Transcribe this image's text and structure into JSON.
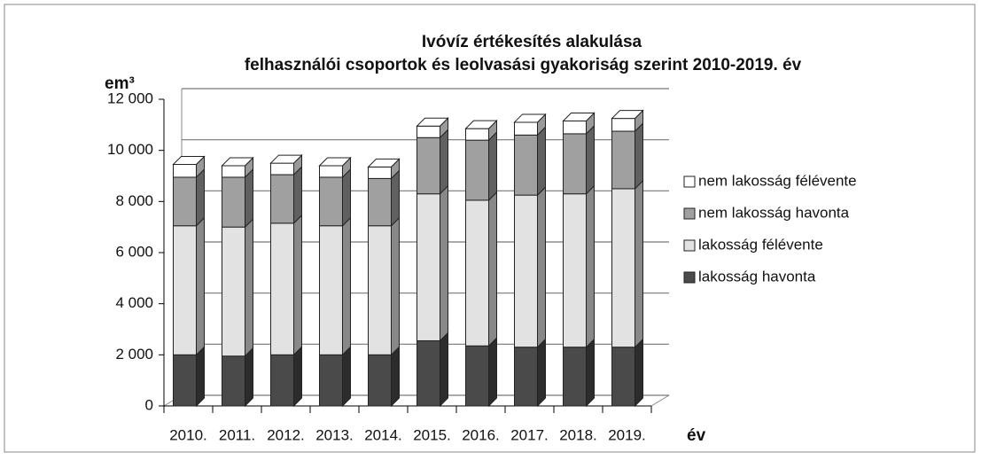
{
  "chart_data": {
    "type": "bar",
    "stacked": true,
    "title": "Ivóvíz értékesítés alakulása",
    "subtitle": "felhasználói csoportok és leolvasási gyakoriság szerint 2010-2019. év",
    "y_label": "em³",
    "x_label": "év",
    "categories": [
      "2010.",
      "2011.",
      "2012.",
      "2013.",
      "2014.",
      "2015.",
      "2016.",
      "2017.",
      "2018.",
      "2019."
    ],
    "series": [
      {
        "name": "lakosság havonta",
        "color": "#4a4a4a",
        "values": [
          2000,
          1950,
          2000,
          2000,
          2000,
          2550,
          2350,
          2300,
          2300,
          2300
        ]
      },
      {
        "name": "lakosság félévente",
        "color": "#e2e2e2",
        "values": [
          5050,
          5050,
          5150,
          5050,
          5050,
          5750,
          5700,
          5950,
          6000,
          6200
        ]
      },
      {
        "name": "nem lakosság havonta",
        "color": "#a0a0a0",
        "values": [
          1900,
          1950,
          1900,
          1900,
          1850,
          2200,
          2350,
          2350,
          2350,
          2250
        ]
      },
      {
        "name": "nem lakosság félévente",
        "color": "#ffffff",
        "values": [
          500,
          450,
          450,
          450,
          450,
          450,
          450,
          500,
          500,
          500
        ]
      }
    ],
    "ylim": [
      0,
      12000
    ],
    "yticks": [
      0,
      {
        "value": 2000,
        "label": "2 000"
      },
      {
        "value": 4000,
        "label": "4 000"
      },
      {
        "value": 6000,
        "label": "6 000"
      },
      {
        "value": 8000,
        "label": "8 000"
      },
      {
        "value": 10000,
        "label": "10 000"
      },
      {
        "value": 12000,
        "label": "12 000"
      }
    ],
    "grid": true,
    "legend": "right"
  }
}
